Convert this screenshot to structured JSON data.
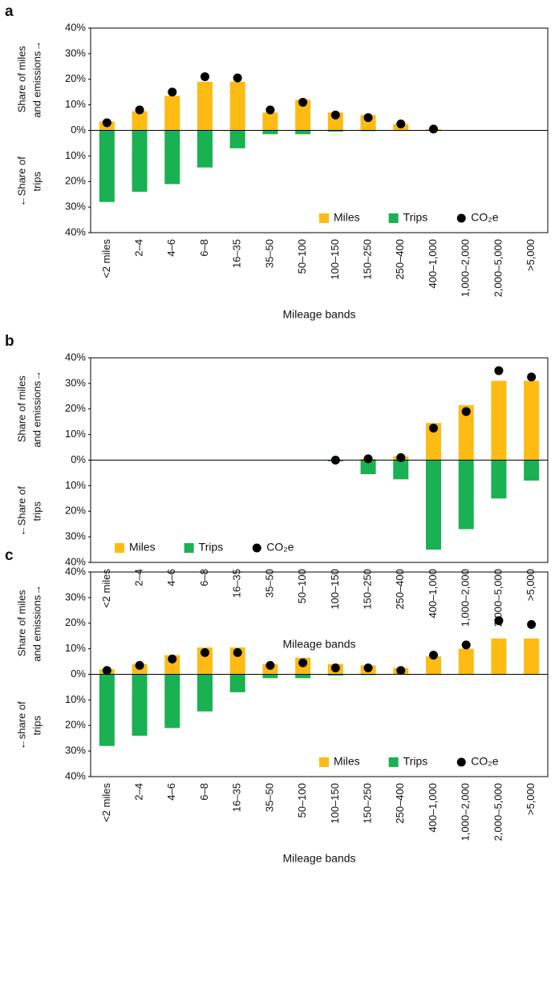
{
  "chart_data": [
    {
      "type": "bar",
      "panel_label": "a",
      "y_label_top": [
        "Share of miles",
        "and emissions→"
      ],
      "y_label_bottom": [
        "←Share of",
        "trips"
      ],
      "x_label": "Mileage bands",
      "categories": [
        "<2 miles",
        "2–4",
        "4–6",
        "6–8",
        "16–35",
        "35–50",
        "50–100",
        "100–150",
        "150–250",
        "250–400",
        "400–1,000",
        "1,000–2,000",
        "2,000–5,000",
        ">5,000"
      ],
      "series": [
        {
          "name": "Miles",
          "type": "bar",
          "color": "#fdbb13",
          "values": [
            3.5,
            7.5,
            13.5,
            19,
            19,
            7,
            12,
            7,
            6,
            2.5,
            0.5,
            0,
            0,
            0
          ]
        },
        {
          "name": "Trips",
          "type": "bar",
          "color": "#19b152",
          "values": [
            -28,
            -24,
            -21,
            -14.5,
            -7,
            -1.5,
            -1.5,
            -0.5,
            -0.3,
            -0.1,
            0,
            0,
            0,
            0
          ]
        },
        {
          "name": "CO₂e",
          "type": "scatter",
          "color": "#000000",
          "values": [
            3,
            8,
            15,
            21,
            20.5,
            8,
            11,
            6,
            5,
            2.5,
            0.5,
            null,
            null,
            null
          ]
        }
      ],
      "ylim": [
        -40,
        40
      ],
      "yticks": [
        {
          "value": 40,
          "label": "40%"
        },
        {
          "value": 30,
          "label": "30%"
        },
        {
          "value": 20,
          "label": "20%"
        },
        {
          "value": 10,
          "label": "10%"
        },
        {
          "value": 0,
          "label": "0%"
        },
        {
          "value": -10,
          "label": "10%"
        },
        {
          "value": -20,
          "label": "20%"
        },
        {
          "value": -30,
          "label": "30%"
        },
        {
          "value": -40,
          "label": "40%"
        }
      ],
      "legend": "lower right"
    },
    {
      "type": "bar",
      "panel_label": "b",
      "y_label_top": [
        "Share of miles",
        "and emissions→"
      ],
      "y_label_bottom": [
        "←Share of",
        "trips"
      ],
      "x_label": "Mileage bands",
      "categories": [
        "<2 miles",
        "2–4",
        "4–6",
        "6–8",
        "16–35",
        "35–50",
        "50–100",
        "100–150",
        "150–250",
        "250–400",
        "400–1,000",
        "1,000–2,000",
        "2,000–5,000",
        ">5,000"
      ],
      "series": [
        {
          "name": "Miles",
          "type": "bar",
          "color": "#fdbb13",
          "values": [
            null,
            null,
            null,
            null,
            null,
            null,
            null,
            0,
            0.5,
            1.5,
            14.5,
            21.5,
            31,
            31
          ]
        },
        {
          "name": "Trips",
          "type": "bar",
          "color": "#19b152",
          "values": [
            null,
            null,
            null,
            null,
            null,
            null,
            null,
            -0.5,
            -5.5,
            -7.5,
            -35,
            -27,
            -15,
            -8
          ]
        },
        {
          "name": "CO₂e",
          "type": "scatter",
          "color": "#000000",
          "values": [
            null,
            null,
            null,
            null,
            null,
            null,
            null,
            0,
            0.5,
            1,
            12.5,
            19,
            35,
            32.5
          ]
        }
      ],
      "ylim": [
        -40,
        40
      ],
      "yticks": [
        {
          "value": 40,
          "label": "40%"
        },
        {
          "value": 30,
          "label": "30%"
        },
        {
          "value": 20,
          "label": "20%"
        },
        {
          "value": 10,
          "label": "10%"
        },
        {
          "value": 0,
          "label": "0%"
        },
        {
          "value": -10,
          "label": "10%"
        },
        {
          "value": -20,
          "label": "20%"
        },
        {
          "value": -30,
          "label": "30%"
        },
        {
          "value": -40,
          "label": "40%"
        }
      ],
      "legend": "lower left"
    },
    {
      "type": "bar",
      "panel_label": "c",
      "y_label_top": [
        "Share of miles",
        "and emissions→"
      ],
      "y_label_bottom": [
        "←share of",
        "trips"
      ],
      "x_label": "Mileage bands",
      "categories": [
        "<2 miles",
        "2–4",
        "4–6",
        "6–8",
        "16–35",
        "35–50",
        "50–100",
        "100–150",
        "150–250",
        "250–400",
        "400–1,000",
        "1,000–2,000",
        "2,000–5,000",
        ">5,000"
      ],
      "series": [
        {
          "name": "Miles",
          "type": "bar",
          "color": "#fdbb13",
          "values": [
            2,
            4,
            7.5,
            10.5,
            10.5,
            4,
            6.5,
            4,
            3.5,
            2.5,
            7,
            10,
            14,
            14
          ]
        },
        {
          "name": "Trips",
          "type": "bar",
          "color": "#19b152",
          "values": [
            -28,
            -24,
            -21,
            -14.5,
            -7,
            -1.5,
            -1.5,
            -0.5,
            -0.3,
            -0.1,
            0,
            0,
            0,
            0
          ]
        },
        {
          "name": "CO₂e",
          "type": "scatter",
          "color": "#000000",
          "values": [
            1.5,
            3.5,
            6,
            8.5,
            8.5,
            3.5,
            4.5,
            2.5,
            2.5,
            1.5,
            7.5,
            11.5,
            21,
            19.5
          ]
        }
      ],
      "ylim": [
        -40,
        40
      ],
      "yticks": [
        {
          "value": 40,
          "label": "40%"
        },
        {
          "value": 30,
          "label": "30%"
        },
        {
          "value": 20,
          "label": "20%"
        },
        {
          "value": 10,
          "label": "10%"
        },
        {
          "value": 0,
          "label": "0%"
        },
        {
          "value": -10,
          "label": "10%"
        },
        {
          "value": -20,
          "label": "20%"
        },
        {
          "value": -30,
          "label": "30%"
        },
        {
          "value": -40,
          "label": "40%"
        }
      ],
      "legend": "lower right"
    }
  ]
}
